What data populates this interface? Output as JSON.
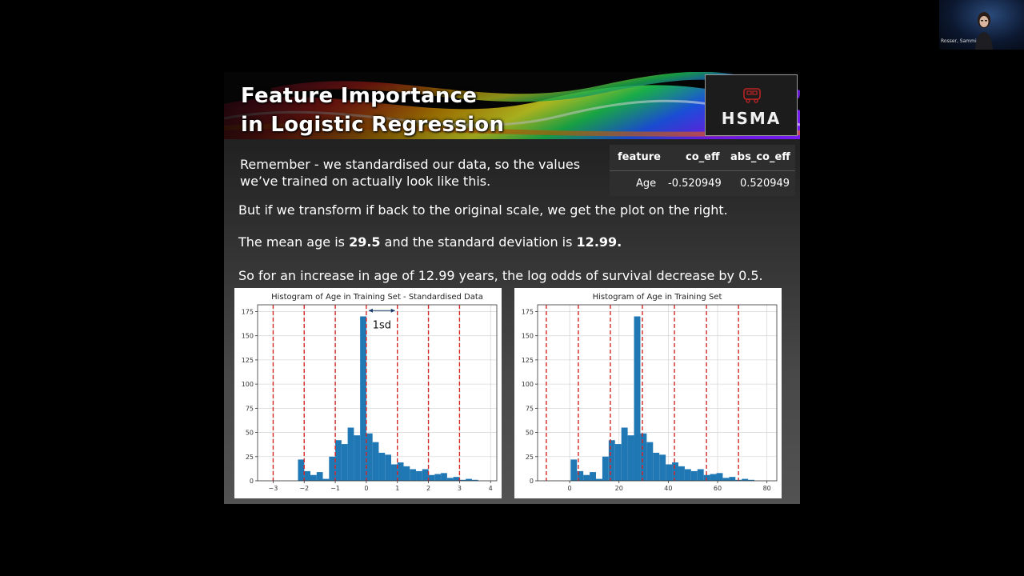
{
  "participant": {
    "name": "Rosser, Sammi"
  },
  "slide": {
    "title_line1": "Feature Importance",
    "title_line2": "in Logistic Regression",
    "logo_text": "HSMA",
    "para1_line1": "Remember - we standardised our data, so the values",
    "para1_line2": "we’ve trained on actually look like this.",
    "para2": "But if we transform if back to the original scale, we get the plot on the right.",
    "para3_a": "The mean age is ",
    "para3_b": "29.5",
    "para3_c": " and the standard deviation is ",
    "para3_d": "12.99.",
    "para4": "So for an increase in age of 12.99 years, the log odds of survival decrease by 0.5.",
    "table": {
      "headers": [
        "feature",
        "co_eff",
        "abs_co_eff"
      ],
      "row": [
        "Age",
        "-0.520949",
        "0.520949"
      ]
    },
    "annotation_1sd": "1sd"
  },
  "colors": {
    "bar": "#1f77b4",
    "dashed_line": "#d62728",
    "slide_text": "#ffffff"
  },
  "chart_data": [
    {
      "type": "bar",
      "title": "Histogram of Age in Training Set - Standardised Data",
      "xlim": [
        -3.5,
        4.2
      ],
      "ylim": [
        0,
        182
      ],
      "xticks": [
        -3,
        -2,
        -1,
        0,
        1,
        2,
        3,
        4
      ],
      "yticks": [
        0,
        25,
        50,
        75,
        100,
        125,
        150,
        175
      ],
      "bins": [
        -2.2,
        -2.0,
        -1.8,
        -1.6,
        -1.4,
        -1.2,
        -1.0,
        -0.8,
        -0.6,
        -0.4,
        -0.2,
        0.0,
        0.2,
        0.4,
        0.6,
        0.8,
        1.0,
        1.2,
        1.4,
        1.6,
        1.8,
        2.0,
        2.2,
        2.4,
        2.6,
        2.8,
        3.0,
        3.2,
        3.4,
        3.6,
        3.8
      ],
      "counts": [
        22,
        10,
        6,
        9,
        2,
        25,
        42,
        38,
        55,
        47,
        170,
        49,
        40,
        29,
        27,
        17,
        19,
        15,
        12,
        10,
        12,
        6,
        7,
        8,
        3,
        4,
        1,
        2,
        1,
        0
      ],
      "vlines": [
        -3,
        -2,
        -1,
        0,
        1,
        2,
        3
      ],
      "arrow_label": "1sd"
    },
    {
      "type": "bar",
      "title": "Histogram of Age in Training Set",
      "xlim": [
        -13,
        84
      ],
      "ylim": [
        0,
        182
      ],
      "xticks": [
        0,
        20,
        40,
        60,
        80
      ],
      "yticks": [
        0,
        25,
        50,
        75,
        100,
        125,
        150,
        175
      ],
      "bins": [
        0.4,
        2.97,
        5.54,
        8.11,
        10.68,
        13.25,
        15.82,
        18.39,
        20.96,
        23.53,
        26.1,
        28.67,
        31.24,
        33.81,
        36.38,
        38.95,
        41.52,
        44.09,
        46.66,
        49.23,
        51.8,
        54.37,
        56.94,
        59.51,
        62.08,
        64.65,
        67.22,
        69.79,
        72.36,
        74.93,
        77.5
      ],
      "counts": [
        22,
        10,
        6,
        9,
        2,
        25,
        42,
        38,
        55,
        47,
        170,
        49,
        40,
        29,
        27,
        17,
        19,
        15,
        12,
        10,
        12,
        6,
        7,
        8,
        3,
        4,
        1,
        2,
        1,
        0
      ],
      "vlines": [
        -9.47,
        3.52,
        16.51,
        29.5,
        42.49,
        55.48,
        68.47
      ]
    }
  ]
}
